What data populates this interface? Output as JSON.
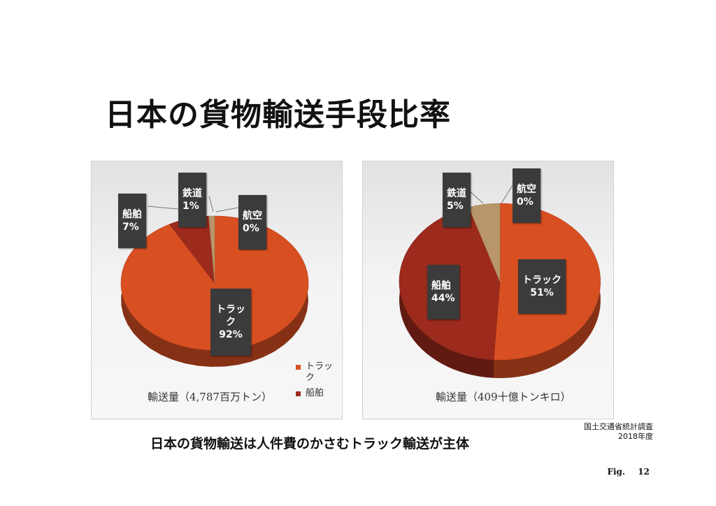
{
  "title": "日本の貨物輸送手段比率",
  "subtitle": "日本の貨物輸送は人件費のかさむトラック輸送が主体",
  "source": [
    "国土交通省統計調査",
    "2018年度"
  ],
  "footer": {
    "label": "Fig.",
    "page": "12"
  },
  "chart_data": [
    {
      "type": "pie",
      "caption": "輸送量（4,787百万トン）",
      "slices": [
        {
          "name": "トラック",
          "value": 92,
          "label": "92%",
          "color": "#d84f22"
        },
        {
          "name": "船舶",
          "value": 7,
          "label": "7%",
          "color": "#9c2a1d"
        },
        {
          "name": "鉄道",
          "value": 1,
          "label": "1%",
          "color": "#b9966a"
        },
        {
          "name": "航空",
          "value": 0,
          "label": "0%",
          "color": "#8a8a8a"
        }
      ],
      "legend": [
        {
          "name": "トラック",
          "color": "#d84f22"
        },
        {
          "name": "船舶",
          "color": "#9c2a1d"
        }
      ]
    },
    {
      "type": "pie",
      "caption": "輸送量（409十億トンキロ）",
      "slices": [
        {
          "name": "トラック",
          "value": 51,
          "label": "51%",
          "color": "#d84f22"
        },
        {
          "name": "船舶",
          "value": 44,
          "label": "44%",
          "color": "#9c2a1d"
        },
        {
          "name": "鉄道",
          "value": 5,
          "label": "5%",
          "color": "#b9966a"
        },
        {
          "name": "航空",
          "value": 0,
          "label": "0%",
          "color": "#8a8a8a"
        }
      ]
    }
  ]
}
